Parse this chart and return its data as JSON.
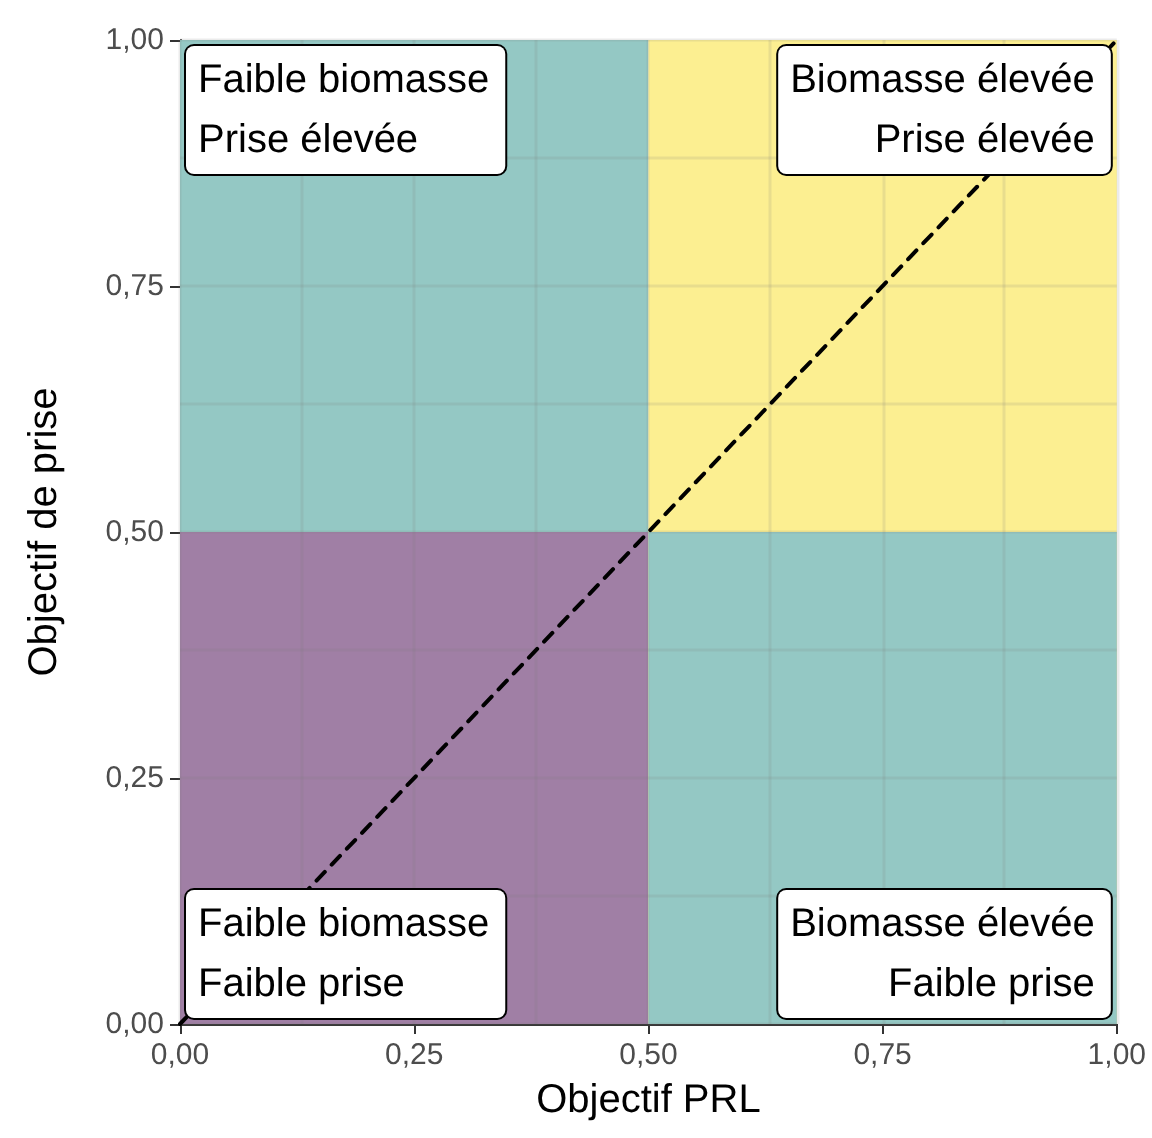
{
  "chart_data": {
    "type": "area",
    "xlabel": "Objectif PRL",
    "ylabel": "Objectif de prise",
    "series": [
      {
        "color": "#94c8c4",
        "x": [
          0,
          0.5
        ],
        "values": [
          1,
          1
        ]
      },
      {
        "color": "#a07fa5",
        "x": [
          0,
          0.5
        ],
        "values": [
          0.5,
          0.5
        ]
      },
      {
        "color": "#fcef91",
        "x": [
          0.5,
          1
        ],
        "values": [
          1,
          1
        ]
      },
      {
        "color": "#94c8c4",
        "x": [
          0.5,
          1
        ],
        "values": [
          0.5,
          0.5
        ]
      },
      {
        "type": "line",
        "color": "#000000",
        "x": [
          0,
          1
        ],
        "values": [
          0,
          1
        ],
        "line_style": "dashed",
        "marker": "none"
      }
    ],
    "xlim": [
      0,
      1
    ],
    "ylim": [
      0,
      1
    ],
    "xticks": [
      {
        "value": 0,
        "label": "0,00"
      },
      {
        "value": 0.25,
        "label": "0,25"
      },
      {
        "value": 0.5,
        "label": "0,50"
      },
      {
        "value": 0.75,
        "label": "0,75"
      },
      {
        "value": 1,
        "label": "1,00"
      }
    ],
    "yticks": [
      {
        "value": 0,
        "label": "0,00"
      },
      {
        "value": 0.25,
        "label": "0,25"
      },
      {
        "value": 0.5,
        "label": "0,50"
      },
      {
        "value": 0.75,
        "label": "0,75"
      },
      {
        "value": 1,
        "label": "1,00"
      }
    ],
    "grid": true,
    "annotations": [
      "Faible biomasse\nPrise élevée",
      "Biomasse élevée\nPrise élevée",
      "Faible biomasse\nFaible prise",
      "Biomasse élevée\nFaible prise"
    ]
  }
}
